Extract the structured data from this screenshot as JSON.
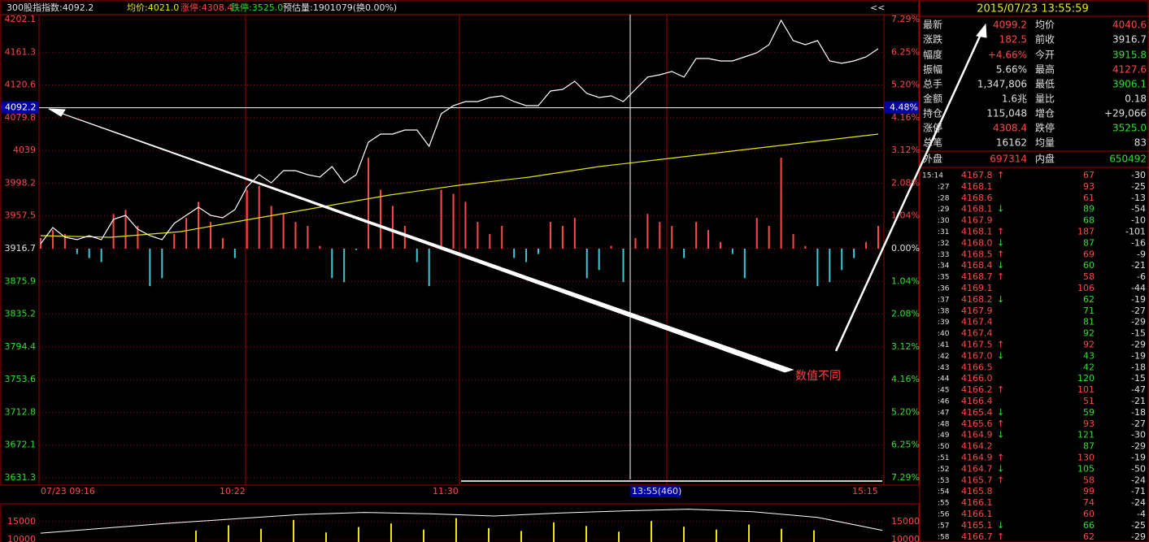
{
  "header": {
    "title": "300股指指数:4092.2",
    "avg": "均价:4021.0",
    "up_limit": "涨停:4308.4",
    "down_limit": "跌停:3525.0",
    "estimate": "预估量:1901079(换0.00%)",
    "collapse": "<<"
  },
  "chart": {
    "yticks": [
      4202.1,
      4161.3,
      4120.6,
      4079.8,
      4039.0,
      3998.2,
      3957.5,
      3916.7,
      3875.9,
      3835.2,
      3794.4,
      3753.6,
      3712.8,
      3672.1,
      3631.3
    ],
    "pct_ticks": [
      "7.29%",
      "6.25%",
      "5.20%",
      "4.16%",
      "3.12%",
      "2.08%",
      "1.04%",
      "0.00%",
      "1.04%",
      "2.08%",
      "3.12%",
      "4.16%",
      "5.20%",
      "6.25%",
      "7.29%"
    ],
    "x_labels": [
      "07/23 09:16",
      "10:22",
      "11:30",
      "13:55(460)",
      "15:15"
    ],
    "cursor": {
      "value": 4092.2,
      "pct": "4.48%"
    },
    "price": {
      "color": "#ffffff",
      "values": [
        3922.8,
        3943.0,
        3930.9,
        3927.9,
        3932.9,
        3927.9,
        3953.2,
        3958.2,
        3941.0,
        3932.9,
        3927.9,
        3948.1,
        3958.2,
        3968.3,
        3958.2,
        3955.2,
        3965.3,
        3993.6,
        4008.8,
        3998.7,
        4013.9,
        4013.9,
        4008.8,
        4005.8,
        4018.9,
        3998.7,
        4008.8,
        4049.3,
        4059.4,
        4059.4,
        4064.5,
        4064.5,
        4044.2,
        4084.7,
        4094.8,
        4099.9,
        4099.9,
        4104.9,
        4107.0,
        4099.9,
        4094.8,
        4094.8,
        4113.0,
        4115.1,
        4125.2,
        4110.0,
        4104.9,
        4107.0,
        4099.9,
        4115.1,
        4130.3,
        4133.3,
        4137.3,
        4130.3,
        4153.5,
        4153.5,
        4150.5,
        4150.5,
        4155.5,
        4160.6,
        4170.7,
        4201.1,
        4175.8,
        4170.7,
        4175.8,
        4150.5,
        4147.5,
        4150.5,
        4155.5,
        4165.7
      ]
    },
    "average": {
      "color": "#e8e800",
      "values": [
        3932.9,
        3930.9,
        3937.9,
        3953.2,
        3968.3,
        3983.5,
        3995.7,
        4005.8,
        4018.9,
        4029.0,
        4039.2,
        4049.3,
        4059.4
      ]
    },
    "bars": {
      "up_color": "#ff4848",
      "down_color": "#40c8d8",
      "values": [
        3930,
        3940,
        3935,
        3910,
        3905,
        3900,
        3960,
        3965,
        3945,
        3870,
        3880,
        3935,
        3955,
        3975,
        3950,
        3930,
        3905,
        3990,
        3995,
        3970,
        3960,
        3950,
        3945,
        3920,
        3880,
        3875,
        3915,
        4030,
        3990,
        3970,
        3945,
        3900,
        3870,
        3990,
        3985,
        3975,
        3950,
        3935,
        3945,
        3905,
        3900,
        3910,
        3950,
        3945,
        3955,
        3880,
        3890,
        3920,
        3875,
        3930,
        3960,
        3950,
        3945,
        3905,
        3950,
        3940,
        3925,
        3910,
        3880,
        3955,
        3945,
        4030,
        3935,
        3920,
        3870,
        3875,
        3890,
        3905,
        3925,
        3945
      ]
    },
    "annotation": "数值不同"
  },
  "volume": {
    "yticks": [
      15000,
      10000
    ],
    "line": [
      11800,
      13200,
      14600,
      15800,
      17000,
      17600,
      17200,
      16600,
      17400,
      18000,
      18500,
      17800,
      16200,
      12600
    ],
    "bar_color": "#e8e800",
    "bars": [
      12500,
      14000,
      13000,
      15500,
      12000,
      13500,
      14500,
      12800,
      16000,
      13200,
      12400,
      14800,
      13800,
      12200,
      15200,
      13600,
      12800,
      14200,
      13000,
      12600
    ]
  },
  "quote": {
    "datetime": "2015/07/23 13:55:59",
    "rows": [
      [
        "最新",
        "4099.2",
        "均价",
        "4040.6"
      ],
      [
        "涨跌",
        "182.5",
        "前收",
        "3916.7"
      ],
      [
        "幅度",
        "+4.66%",
        "今开",
        "3915.8"
      ],
      [
        "振幅",
        "5.66%",
        "最高",
        "4127.6"
      ],
      [
        "总手",
        "1,347,806",
        "最低",
        "3906.1"
      ],
      [
        "金额",
        "1.6兆",
        "量比",
        "0.18"
      ],
      [
        "持仓",
        "115,048",
        "增仓",
        "+29,066"
      ],
      [
        "涨停",
        "4308.4",
        "跌停",
        "3525.0"
      ],
      [
        "总笔",
        "16162",
        "均量",
        "83"
      ],
      [
        "外盘",
        "697314",
        "内盘",
        "650492"
      ]
    ],
    "colors": [
      [
        "#ff4848",
        "#ff4848"
      ],
      [
        "#ff4848",
        "#e0e0e0"
      ],
      [
        "#ff4848",
        "#30e030"
      ],
      [
        "#e0e0e0",
        "#ff4848"
      ],
      [
        "#e0e0e0",
        "#30e030"
      ],
      [
        "#e0e0e0",
        "#e0e0e0"
      ],
      [
        "#e0e0e0",
        "#e0e0e0"
      ],
      [
        "#ff4848",
        "#30e030"
      ],
      [
        "#e0e0e0",
        "#e0e0e0"
      ],
      [
        "#ff4848",
        "#30e030"
      ]
    ]
  },
  "ticks": {
    "rows": [
      {
        "time": "15:14",
        "price": "4167.8",
        "arrow": "↑",
        "volume": "67",
        "change": "-30",
        "color": "#ff4848"
      },
      {
        "time": ":27",
        "price": "4168.1",
        "volume": "93",
        "change": "-25",
        "color": "#ff4848"
      },
      {
        "time": ":28",
        "price": "4168.6",
        "volume": "61",
        "change": "-13",
        "color": "#ff4848"
      },
      {
        "time": ":29",
        "price": "4168.1",
        "arrow": "↓",
        "volume": "89",
        "change": "-54",
        "color": "#30e030"
      },
      {
        "time": ":30",
        "price": "4167.9",
        "volume": "68",
        "change": "-10",
        "color": "#30e030"
      },
      {
        "time": ":31",
        "price": "4168.1",
        "arrow": "↑",
        "volume": "187",
        "change": "-101",
        "color": "#ff4848"
      },
      {
        "time": ":32",
        "price": "4168.0",
        "arrow": "↓",
        "volume": "87",
        "change": "-16",
        "color": "#30e030"
      },
      {
        "time": ":33",
        "price": "4168.5",
        "arrow": "↑",
        "volume": "69",
        "change": "-9",
        "color": "#ff4848"
      },
      {
        "time": ":34",
        "price": "4168.4",
        "arrow": "↓",
        "volume": "60",
        "change": "-21",
        "color": "#30e030"
      },
      {
        "time": ":35",
        "price": "4168.7",
        "arrow": "↑",
        "volume": "58",
        "change": "-6",
        "color": "#ff4848"
      },
      {
        "time": ":36",
        "price": "4169.1",
        "volume": "106",
        "change": "-44",
        "color": "#ff4848"
      },
      {
        "time": ":37",
        "price": "4168.2",
        "arrow": "↓",
        "volume": "62",
        "change": "-19",
        "color": "#30e030"
      },
      {
        "time": ":38",
        "price": "4167.9",
        "volume": "71",
        "change": "-27",
        "color": "#30e030"
      },
      {
        "time": ":39",
        "price": "4167.4",
        "volume": "81",
        "change": "-29",
        "color": "#30e030"
      },
      {
        "time": ":40",
        "price": "4167.4",
        "volume": "92",
        "change": "-15",
        "color": "#30e030"
      },
      {
        "time": ":41",
        "price": "4167.5",
        "arrow": "↑",
        "volume": "92",
        "change": "-29",
        "color": "#ff4848"
      },
      {
        "time": ":42",
        "price": "4167.0",
        "arrow": "↓",
        "volume": "43",
        "change": "-19",
        "color": "#30e030"
      },
      {
        "time": ":43",
        "price": "4166.5",
        "volume": "42",
        "change": "-18",
        "color": "#30e030"
      },
      {
        "time": ":44",
        "price": "4166.0",
        "volume": "120",
        "change": "-15",
        "color": "#30e030"
      },
      {
        "time": ":45",
        "price": "4166.2",
        "arrow": "↑",
        "volume": "101",
        "change": "-47",
        "color": "#ff4848"
      },
      {
        "time": ":46",
        "price": "4166.4",
        "volume": "51",
        "change": "-21",
        "color": "#ff4848"
      },
      {
        "time": ":47",
        "price": "4165.4",
        "arrow": "↓",
        "volume": "59",
        "change": "-18",
        "color": "#30e030"
      },
      {
        "time": ":48",
        "price": "4165.6",
        "arrow": "↑",
        "volume": "93",
        "change": "-27",
        "color": "#ff4848"
      },
      {
        "time": ":49",
        "price": "4164.9",
        "arrow": "↓",
        "volume": "121",
        "change": "-30",
        "color": "#30e030"
      },
      {
        "time": ":50",
        "price": "4164.2",
        "volume": "87",
        "change": "-29",
        "color": "#30e030"
      },
      {
        "time": ":51",
        "price": "4164.9",
        "arrow": "↑",
        "volume": "130",
        "change": "-19",
        "color": "#ff4848"
      },
      {
        "time": ":52",
        "price": "4164.7",
        "arrow": "↓",
        "volume": "105",
        "change": "-50",
        "color": "#30e030"
      },
      {
        "time": ":53",
        "price": "4165.7",
        "arrow": "↑",
        "volume": "58",
        "change": "-24",
        "color": "#ff4848"
      },
      {
        "time": ":54",
        "price": "4165.8",
        "volume": "99",
        "change": "-71",
        "color": "#ff4848"
      },
      {
        "time": ":55",
        "price": "4166.1",
        "volume": "74",
        "change": "-24",
        "color": "#ff4848"
      },
      {
        "time": ":56",
        "price": "4166.1",
        "volume": "60",
        "change": "-4",
        "color": "#ff4848"
      },
      {
        "time": ":57",
        "price": "4165.1",
        "arrow": "↓",
        "volume": "66",
        "change": "-25",
        "color": "#30e030"
      },
      {
        "time": ":58",
        "price": "4166.7",
        "arrow": "↑",
        "volume": "62",
        "change": "-29",
        "color": "#ff4848"
      }
    ]
  }
}
